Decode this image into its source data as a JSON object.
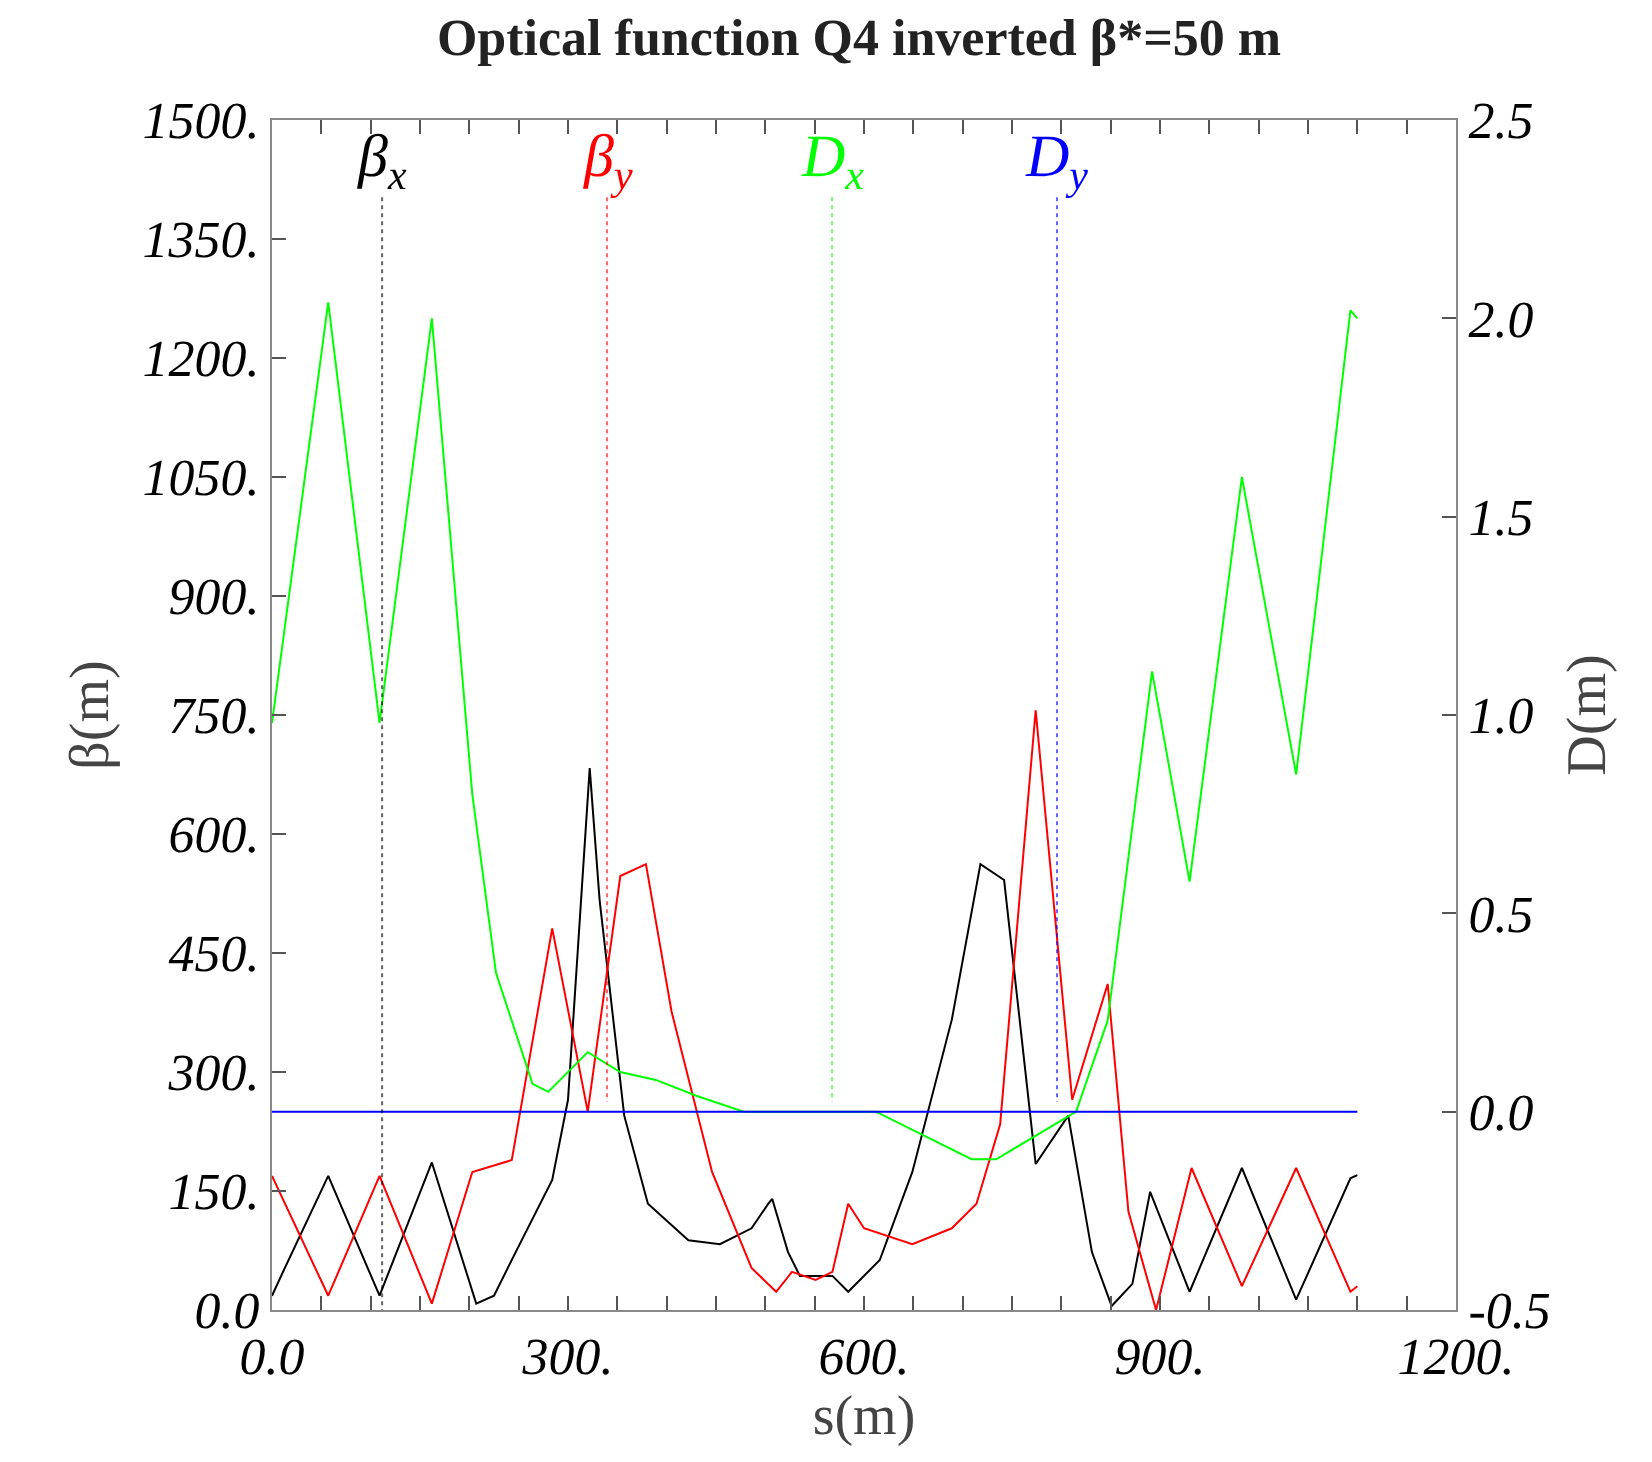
{
  "chart_data": {
    "type": "line",
    "title": "Optical function Q4 inverted β*=50 m",
    "xlabel": "s(m)",
    "ylabel": "β(m)",
    "y2label": "D(m)",
    "legend": "top",
    "grid": false,
    "marker": "none",
    "line_style": "solid",
    "xlim": [
      0,
      1200
    ],
    "xticks": [
      {
        "value": 0,
        "label": "0.0"
      },
      {
        "value": 50,
        "label": null
      },
      {
        "value": 100,
        "label": null
      },
      {
        "value": 150,
        "label": null
      },
      {
        "value": 200,
        "label": null
      },
      {
        "value": 250,
        "label": null
      },
      {
        "value": 300,
        "label": "300."
      },
      {
        "value": 350,
        "label": null
      },
      {
        "value": 400,
        "label": null
      },
      {
        "value": 450,
        "label": null
      },
      {
        "value": 500,
        "label": null
      },
      {
        "value": 550,
        "label": null
      },
      {
        "value": 600,
        "label": "600."
      },
      {
        "value": 650,
        "label": null
      },
      {
        "value": 700,
        "label": null
      },
      {
        "value": 750,
        "label": null
      },
      {
        "value": 800,
        "label": null
      },
      {
        "value": 850,
        "label": null
      },
      {
        "value": 900,
        "label": "900."
      },
      {
        "value": 950,
        "label": null
      },
      {
        "value": 1000,
        "label": null
      },
      {
        "value": 1050,
        "label": null
      },
      {
        "value": 1100,
        "label": null
      },
      {
        "value": 1150,
        "label": null
      },
      {
        "value": 1200,
        "label": "1200."
      }
    ],
    "ylim": [
      0,
      1500
    ],
    "yticks": [
      {
        "value": 0,
        "label": "0.0"
      },
      {
        "value": 150,
        "label": "150."
      },
      {
        "value": 300,
        "label": "300."
      },
      {
        "value": 450,
        "label": "450."
      },
      {
        "value": 600,
        "label": "600."
      },
      {
        "value": 750,
        "label": "750."
      },
      {
        "value": 900,
        "label": "900."
      },
      {
        "value": 1050,
        "label": "1050."
      },
      {
        "value": 1200,
        "label": "1200."
      },
      {
        "value": 1350,
        "label": "1350."
      },
      {
        "value": 1500,
        "label": "1500."
      }
    ],
    "y2lim": [
      -0.5,
      2.5
    ],
    "y2ticks": [
      {
        "value": -0.5,
        "label": "-0.5"
      },
      {
        "value": 0,
        "label": "0.0"
      },
      {
        "value": 0.5,
        "label": "0.5"
      },
      {
        "value": 1,
        "label": "1.0"
      },
      {
        "value": 1.5,
        "label": "1.5"
      },
      {
        "value": 2,
        "label": "2.0"
      },
      {
        "value": 2.5,
        "label": "2.5"
      }
    ],
    "series": [
      {
        "name": "β$_{x}$",
        "color": "#000000",
        "axis": "y",
        "x": [
          0,
          10,
          57,
          109,
          162,
          207,
          225,
          247,
          284,
          300,
          322,
          332,
          357,
          381,
          422,
          454,
          486,
          503,
          507,
          523,
          535,
          568,
          584,
          616,
          649,
          689,
          718,
          742,
          774,
          807,
          831,
          851,
          872,
          890,
          930,
          983,
          1038,
          1093,
          1100
        ],
        "values": [
          18,
          45,
          169,
          18,
          186,
          8,
          18,
          73,
          164,
          265,
          683,
          517,
          245,
          134,
          88,
          83,
          103,
          134,
          140,
          73,
          43,
          43,
          23,
          63,
          174,
          366,
          562,
          542,
          184,
          245,
          73,
          5,
          33,
          149,
          23,
          179,
          13,
          166,
          170
        ]
      },
      {
        "name": "β$_{y}$",
        "color": "#ff0000",
        "axis": "y",
        "x": [
          0,
          57,
          109,
          162,
          203,
          243,
          284,
          320,
          353,
          379,
          405,
          446,
          486,
          511,
          527,
          551,
          568,
          584,
          600,
          649,
          689,
          714,
          738,
          774,
          811,
          847,
          868,
          896,
          932,
          983,
          1038,
          1093,
          1100
        ],
        "values": [
          169,
          18,
          169,
          8,
          174,
          189,
          481,
          250,
          547,
          562,
          376,
          174,
          53,
          23,
          48,
          38,
          48,
          134,
          103,
          83,
          103,
          134,
          234,
          756,
          265,
          411,
          124,
          0,
          179,
          30,
          179,
          23,
          30
        ]
      },
      {
        "name": "D$_{x}$",
        "color": "#00ff00",
        "axis": "y2",
        "x": [
          0,
          57,
          109,
          162,
          203,
          227,
          264,
          280,
          320,
          353,
          389,
          430,
          478,
          612,
          709,
          734,
          815,
          847,
          892,
          930,
          983,
          1038,
          1093,
          1100
        ],
        "values": [
          0.98,
          2.04,
          0.98,
          2.0,
          0.8,
          0.35,
          0.07,
          0.05,
          0.15,
          0.1,
          0.08,
          0.04,
          0,
          0,
          -0.12,
          -0.12,
          0,
          0.23,
          1.11,
          0.58,
          1.6,
          0.85,
          2.02,
          2.0
        ]
      },
      {
        "name": "D$_{y}$",
        "color": "#0000ff",
        "axis": "y2",
        "x": [
          0,
          1100
        ],
        "values": [
          0,
          0
        ]
      }
    ]
  }
}
